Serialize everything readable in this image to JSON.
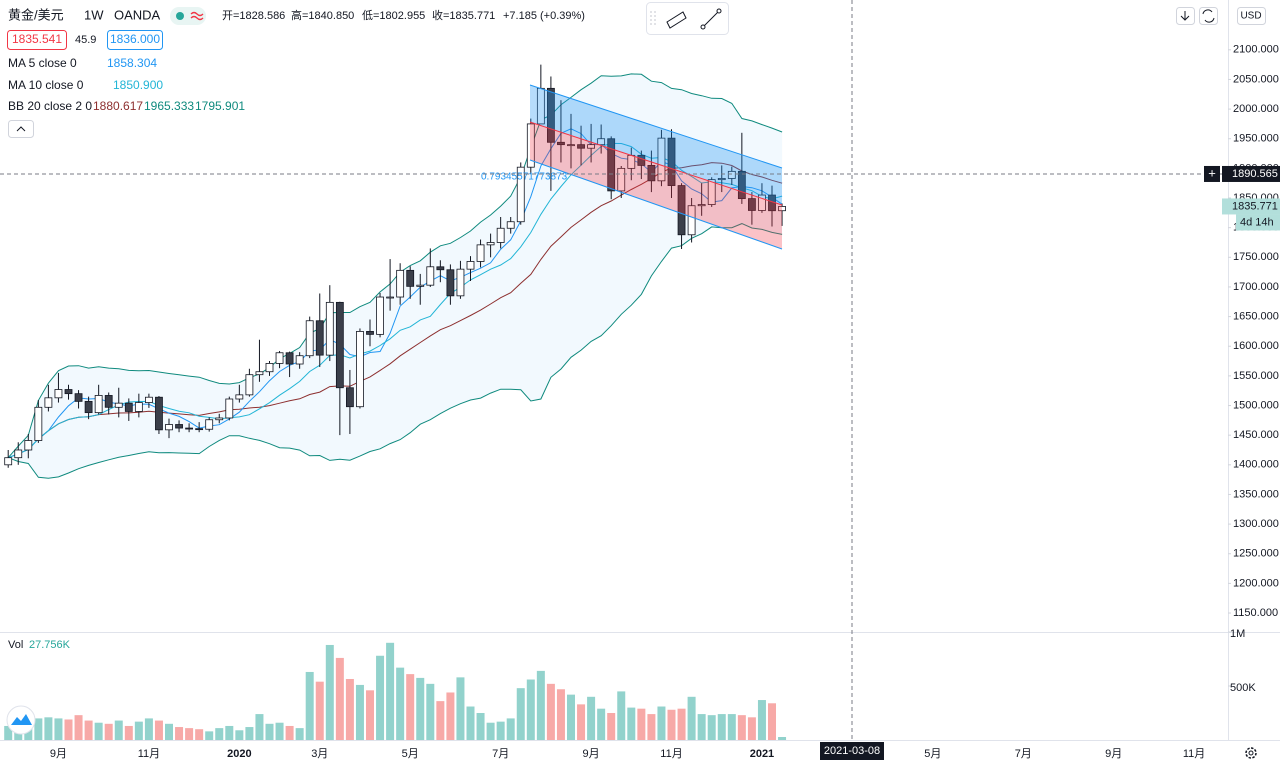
{
  "header": {
    "symbol": "黄金/美元",
    "interval": "1W",
    "exchange": "OANDA",
    "ohlc": [
      "开=1828.586",
      "高=1840.850",
      "低=1802.955",
      "收=1835.771"
    ],
    "change": "+7.185 (+0.39%)",
    "bid": "1835.541",
    "spread": "45.9",
    "ask": "1836.000",
    "currency": "USD"
  },
  "indicators": [
    {
      "name": "MA 5 close 0",
      "period": 5,
      "value": "1858.304",
      "color": "#2196f3"
    },
    {
      "name": "MA 10 close 0",
      "period": 10,
      "value": "1850.900",
      "color": "#22b5d6"
    }
  ],
  "bollinger": {
    "name": "BB 20 close 2 0",
    "period": 20,
    "mult": 2,
    "values": [
      "1880.617",
      "1965.333",
      "1795.901"
    ],
    "colors": [
      "#8d2f2f",
      "#0f8a7e",
      "#0f8a7e"
    ]
  },
  "channel_label": "0.79345571773873",
  "crosshair": {
    "date": "2021-03-08",
    "price": 1890.565
  },
  "countdown": "4d 14h",
  "volume_title": "Vol",
  "volume_label": "27.756K",
  "chart_data": {
    "type": "candlestick",
    "categories": [
      null,
      null,
      null,
      null,
      null,
      "9月",
      null,
      null,
      null,
      null,
      null,
      null,
      null,
      null,
      "11月",
      null,
      null,
      null,
      null,
      null,
      null,
      null,
      null,
      "2020",
      null,
      null,
      null,
      null,
      null,
      null,
      null,
      "3月",
      null,
      null,
      null,
      null,
      null,
      null,
      null,
      null,
      "5月",
      null,
      null,
      null,
      null,
      null,
      null,
      null,
      null,
      "7月",
      null,
      null,
      null,
      null,
      null,
      null,
      null,
      null,
      "9月",
      null,
      null,
      null,
      null,
      null,
      null,
      null,
      "11月",
      null,
      null,
      null,
      null,
      null,
      null,
      null,
      null,
      "2021",
      null,
      null
    ],
    "future_categories": [
      null,
      null,
      null,
      null,
      null,
      null,
      null,
      null,
      null,
      null,
      null,
      null,
      null,
      null,
      "5月",
      null,
      null,
      null,
      null,
      null,
      null,
      null,
      null,
      "7月",
      null,
      null,
      null,
      null,
      null,
      null,
      null,
      null,
      "9月",
      null,
      null,
      null,
      null,
      null,
      null,
      null,
      "11月"
    ],
    "open": [
      1400,
      1412,
      1425,
      1441,
      1497,
      1513,
      1527,
      1520,
      1507,
      1488,
      1517,
      1497,
      1504,
      1490,
      1505,
      1514,
      1459,
      1468,
      1462,
      1461,
      1460,
      1476,
      1479,
      1511,
      1518,
      1552,
      1557,
      1571,
      1589,
      1570,
      1584,
      1643,
      1585,
      1674,
      1530,
      1498,
      1625,
      1620,
      1683,
      1683,
      1728,
      1701,
      1703,
      1734,
      1729,
      1685,
      1730,
      1743,
      1771,
      1775,
      1799,
      1810,
      1902,
      1975,
      2035,
      1944,
      1940,
      1940,
      1934,
      1940,
      1950,
      1862,
      1900,
      1922,
      1905,
      1879,
      1951,
      1871,
      1788,
      1837,
      1839,
      1881,
      1883,
      1895,
      1849,
      1829,
      1855,
      1828.586
    ],
    "high": [
      1425,
      1438,
      1452,
      1509,
      1535,
      1555,
      1535,
      1526,
      1515,
      1535,
      1522,
      1530,
      1512,
      1520,
      1520,
      1516,
      1478,
      1475,
      1470,
      1472,
      1480,
      1486,
      1515,
      1535,
      1562,
      1611,
      1575,
      1592,
      1591,
      1590,
      1650,
      1689,
      1703,
      1675,
      1560,
      1630,
      1645,
      1690,
      1747,
      1740,
      1735,
      1722,
      1765,
      1745,
      1738,
      1744,
      1752,
      1780,
      1790,
      1818,
      1818,
      1910,
      1984,
      2075,
      2055,
      2015,
      1992,
      1972,
      1975,
      1974,
      1954,
      1904,
      1935,
      1930,
      1930,
      1965,
      1966,
      1875,
      1850,
      1875,
      1885,
      1905,
      1903,
      1960,
      1860,
      1875,
      1871,
      1840.85
    ],
    "low": [
      1395,
      1400,
      1411,
      1437,
      1490,
      1505,
      1510,
      1495,
      1477,
      1485,
      1485,
      1480,
      1474,
      1480,
      1496,
      1452,
      1445,
      1455,
      1455,
      1455,
      1456,
      1470,
      1475,
      1505,
      1515,
      1540,
      1550,
      1563,
      1548,
      1562,
      1580,
      1565,
      1575,
      1450,
      1452,
      1495,
      1600,
      1615,
      1660,
      1670,
      1680,
      1670,
      1700,
      1708,
      1670,
      1680,
      1710,
      1733,
      1750,
      1765,
      1790,
      1805,
      1890,
      1975,
      1862,
      1910,
      1900,
      1905,
      1910,
      1925,
      1848,
      1850,
      1880,
      1882,
      1860,
      1870,
      1850,
      1764,
      1775,
      1820,
      1835,
      1860,
      1872,
      1840,
      1805,
      1825,
      1802,
      1802.955
    ],
    "close": [
      1412,
      1425,
      1441,
      1497,
      1513,
      1527,
      1520,
      1507,
      1488,
      1517,
      1497,
      1504,
      1490,
      1505,
      1514,
      1459,
      1468,
      1462,
      1461,
      1460,
      1476,
      1479,
      1511,
      1518,
      1552,
      1557,
      1571,
      1589,
      1570,
      1584,
      1643,
      1585,
      1674,
      1530,
      1498,
      1625,
      1620,
      1683,
      1683,
      1728,
      1701,
      1703,
      1734,
      1729,
      1685,
      1730,
      1743,
      1771,
      1775,
      1799,
      1810,
      1902,
      1975,
      2035,
      1944,
      1940,
      1940,
      1934,
      1940,
      1950,
      1862,
      1900,
      1922,
      1905,
      1879,
      1951,
      1871,
      1788,
      1837,
      1839,
      1881,
      1883,
      1895,
      1849,
      1829,
      1855,
      1828.586,
      1835.771
    ],
    "volume": [
      130000,
      170000,
      230000,
      200000,
      210000,
      200000,
      190000,
      230000,
      180000,
      160000,
      150000,
      180000,
      130000,
      170000,
      200000,
      180000,
      150000,
      120000,
      110000,
      100000,
      80000,
      110000,
      130000,
      90000,
      120000,
      240000,
      150000,
      160000,
      130000,
      110000,
      630000,
      540000,
      880000,
      760000,
      565000,
      510000,
      460000,
      780000,
      900000,
      670000,
      610000,
      575000,
      520000,
      360000,
      440000,
      580000,
      310000,
      250000,
      160000,
      170000,
      200000,
      480000,
      560000,
      640000,
      520000,
      470000,
      420000,
      330000,
      400000,
      290000,
      250000,
      450000,
      300000,
      290000,
      240000,
      310000,
      280000,
      290000,
      400000,
      240000,
      230000,
      240000,
      240000,
      230000,
      210000,
      370000,
      340000,
      27756
    ],
    "up_color": "#ffffff",
    "down_color": "#3b3f4a",
    "volume_up_color": "#92d2cc",
    "volume_down_color": "#f7a9a7",
    "ylim": [
      1118,
      2184
    ],
    "yticks": [
      {
        "value": 2100,
        "label": "2100.000"
      },
      {
        "value": 2050,
        "label": "2050.000"
      },
      {
        "value": 2000,
        "label": "2000.000"
      },
      {
        "value": 1950,
        "label": "1950.000"
      },
      {
        "value": 1900,
        "label": "1900.000"
      },
      {
        "value": 1850,
        "label": "1850.000"
      },
      {
        "value": 1800,
        "label": "1800.000"
      },
      {
        "value": 1750,
        "label": "1750.000"
      },
      {
        "value": 1700,
        "label": "1700.000"
      },
      {
        "value": 1650,
        "label": "1650.000"
      },
      {
        "value": 1600,
        "label": "1600.000"
      },
      {
        "value": 1550,
        "label": "1550.000"
      },
      {
        "value": 1500,
        "label": "1500.000"
      },
      {
        "value": 1450,
        "label": "1450.000"
      },
      {
        "value": 1400,
        "label": "1400.000"
      },
      {
        "value": 1350,
        "label": "1350.000"
      },
      {
        "value": 1300,
        "label": "1300.000"
      },
      {
        "value": 1250,
        "label": "1250.000"
      },
      {
        "value": 1200,
        "label": "1200.000"
      },
      {
        "value": 1150,
        "label": "1150.000"
      }
    ],
    "vlim": [
      0,
      1000000
    ],
    "vticks": [
      {
        "value": 500000,
        "label": "500K"
      },
      {
        "value": 1000000,
        "label": "1M"
      }
    ],
    "grid": false
  }
}
